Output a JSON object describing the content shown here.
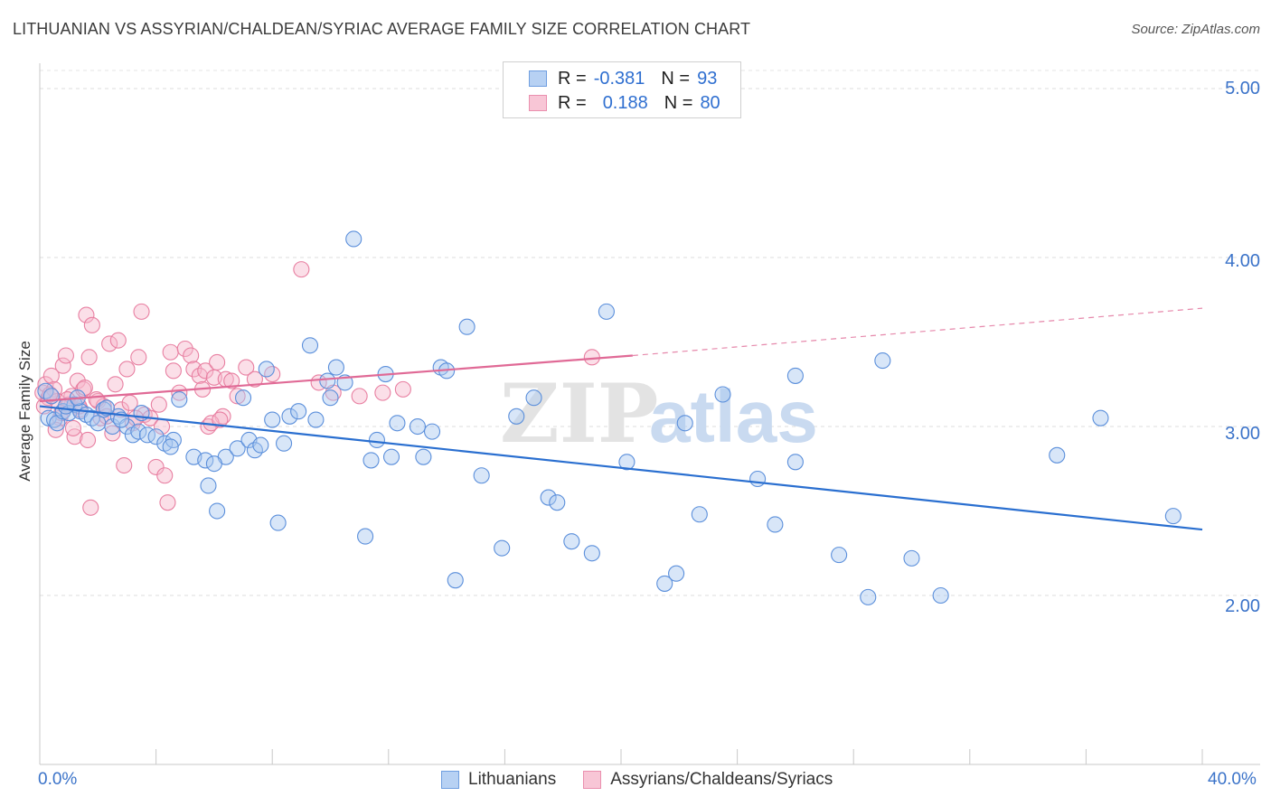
{
  "title": "LITHUANIAN VS ASSYRIAN/CHALDEAN/SYRIAC AVERAGE FAMILY SIZE CORRELATION CHART",
  "source": "Source: ZipAtlas.com",
  "watermark": {
    "part1": "ZIP",
    "part2": "atlas"
  },
  "legend": {
    "series1": {
      "r_label": "R =",
      "r_value": "-0.381",
      "n_label": "N =",
      "n_value": "93"
    },
    "series2": {
      "r_label": "R =",
      "r_value": "0.188",
      "n_label": "N =",
      "n_value": "80"
    }
  },
  "x_axis": {
    "min_label": "0.0%",
    "max_label": "40.0%"
  },
  "y_axis": {
    "label": "Average Family Size",
    "ticks": [
      "2.00",
      "3.00",
      "4.00",
      "5.00"
    ]
  },
  "colors": {
    "blue_fill": "#a9c8f0",
    "blue_stroke": "#5b8fdb",
    "blue_line": "#2a6fd0",
    "pink_fill": "#f6b8cc",
    "pink_stroke": "#e87fa1",
    "pink_line": "#e06a96",
    "tick_label": "#3b73c9"
  },
  "chart_data": {
    "type": "scatter",
    "xlabel": "",
    "ylabel": "Average Family Size",
    "xlim": [
      0,
      40
    ],
    "ylim": [
      1.0,
      5.15
    ],
    "y_ticks": [
      2.0,
      3.0,
      4.0,
      5.0
    ],
    "grid": true,
    "series": [
      {
        "name": "Lithuanians",
        "color": "#5b8fdb",
        "trend": {
          "x": [
            0,
            40
          ],
          "y": [
            3.12,
            2.39
          ],
          "style": "solid"
        },
        "points": [
          [
            0.3,
            3.05
          ],
          [
            0.5,
            3.04
          ],
          [
            0.6,
            3.02
          ],
          [
            0.8,
            3.09
          ],
          [
            1.0,
            3.08
          ],
          [
            1.2,
            3.13
          ],
          [
            1.4,
            3.09
          ],
          [
            1.6,
            3.07
          ],
          [
            1.8,
            3.05
          ],
          [
            2.0,
            3.02
          ],
          [
            2.2,
            3.1
          ],
          [
            2.5,
            3.0
          ],
          [
            2.7,
            3.06
          ],
          [
            3.0,
            3.0
          ],
          [
            3.2,
            2.95
          ],
          [
            3.4,
            2.97
          ],
          [
            3.7,
            2.95
          ],
          [
            4.0,
            2.94
          ],
          [
            4.3,
            2.9
          ],
          [
            4.6,
            2.92
          ],
          [
            4.8,
            3.16
          ],
          [
            5.3,
            2.82
          ],
          [
            5.7,
            2.8
          ],
          [
            5.8,
            2.65
          ],
          [
            6.1,
            2.5
          ],
          [
            6.4,
            2.82
          ],
          [
            6.8,
            2.87
          ],
          [
            7.0,
            3.17
          ],
          [
            7.2,
            2.92
          ],
          [
            7.4,
            2.86
          ],
          [
            7.6,
            2.89
          ],
          [
            7.8,
            3.34
          ],
          [
            8.0,
            3.04
          ],
          [
            8.2,
            2.43
          ],
          [
            8.4,
            2.9
          ],
          [
            8.6,
            3.06
          ],
          [
            8.9,
            3.09
          ],
          [
            9.3,
            3.48
          ],
          [
            9.5,
            3.04
          ],
          [
            9.9,
            3.27
          ],
          [
            10.2,
            3.35
          ],
          [
            10.5,
            3.26
          ],
          [
            10.8,
            4.11
          ],
          [
            11.2,
            2.35
          ],
          [
            11.4,
            2.8
          ],
          [
            11.6,
            2.92
          ],
          [
            11.9,
            3.31
          ],
          [
            12.1,
            2.82
          ],
          [
            12.3,
            3.02
          ],
          [
            13.0,
            3.0
          ],
          [
            13.2,
            2.82
          ],
          [
            13.5,
            2.97
          ],
          [
            13.8,
            3.35
          ],
          [
            14.0,
            3.33
          ],
          [
            14.3,
            2.09
          ],
          [
            14.7,
            3.59
          ],
          [
            15.2,
            2.71
          ],
          [
            15.9,
            2.28
          ],
          [
            16.4,
            3.06
          ],
          [
            17.0,
            3.17
          ],
          [
            17.5,
            2.58
          ],
          [
            17.8,
            2.55
          ],
          [
            18.3,
            2.32
          ],
          [
            19.0,
            2.25
          ],
          [
            19.5,
            3.68
          ],
          [
            20.2,
            2.79
          ],
          [
            21.5,
            2.07
          ],
          [
            21.9,
            2.13
          ],
          [
            22.2,
            3.02
          ],
          [
            22.7,
            2.48
          ],
          [
            23.5,
            3.19
          ],
          [
            24.7,
            2.69
          ],
          [
            25.3,
            2.42
          ],
          [
            26.0,
            3.3
          ],
          [
            26.0,
            2.79
          ],
          [
            27.5,
            2.24
          ],
          [
            28.5,
            1.99
          ],
          [
            29.0,
            3.39
          ],
          [
            30.0,
            2.22
          ],
          [
            31.0,
            2.0
          ],
          [
            35.0,
            2.83
          ],
          [
            36.5,
            3.05
          ],
          [
            39.0,
            2.47
          ],
          [
            0.2,
            3.21
          ],
          [
            0.4,
            3.18
          ],
          [
            0.9,
            3.12
          ],
          [
            1.3,
            3.17
          ],
          [
            2.3,
            3.11
          ],
          [
            2.8,
            3.04
          ],
          [
            3.5,
            3.08
          ],
          [
            4.5,
            2.88
          ],
          [
            6.0,
            2.78
          ],
          [
            10.0,
            3.17
          ]
        ]
      },
      {
        "name": "Assyrians/Chaldeans/Syriacs",
        "color": "#e87fa1",
        "trend": {
          "x": [
            0,
            20.4,
            40
          ],
          "y": [
            3.15,
            3.42,
            3.7
          ],
          "style": "solid-then-dashed"
        },
        "points": [
          [
            0.1,
            3.2
          ],
          [
            0.2,
            3.25
          ],
          [
            0.3,
            3.17
          ],
          [
            0.4,
            3.3
          ],
          [
            0.5,
            3.22
          ],
          [
            0.6,
            3.15
          ],
          [
            0.7,
            3.05
          ],
          [
            0.8,
            3.36
          ],
          [
            0.9,
            3.42
          ],
          [
            1.0,
            3.13
          ],
          [
            1.1,
            3.18
          ],
          [
            1.2,
            2.94
          ],
          [
            1.3,
            3.27
          ],
          [
            1.4,
            3.1
          ],
          [
            1.5,
            3.22
          ],
          [
            1.6,
            3.66
          ],
          [
            1.7,
            3.41
          ],
          [
            1.8,
            3.6
          ],
          [
            2.0,
            3.15
          ],
          [
            2.1,
            3.05
          ],
          [
            2.2,
            3.12
          ],
          [
            2.4,
            3.49
          ],
          [
            2.6,
            3.25
          ],
          [
            2.7,
            3.51
          ],
          [
            2.8,
            3.1
          ],
          [
            3.0,
            3.34
          ],
          [
            3.2,
            3.02
          ],
          [
            3.4,
            3.41
          ],
          [
            3.5,
            3.68
          ],
          [
            3.6,
            3.07
          ],
          [
            3.8,
            3.05
          ],
          [
            4.0,
            2.76
          ],
          [
            4.1,
            3.13
          ],
          [
            4.3,
            2.71
          ],
          [
            4.5,
            3.44
          ],
          [
            4.6,
            3.33
          ],
          [
            4.8,
            3.2
          ],
          [
            5.0,
            3.46
          ],
          [
            5.2,
            3.42
          ],
          [
            5.3,
            3.34
          ],
          [
            5.5,
            3.3
          ],
          [
            5.6,
            3.22
          ],
          [
            5.7,
            3.33
          ],
          [
            5.8,
            3.0
          ],
          [
            6.0,
            3.29
          ],
          [
            6.1,
            3.38
          ],
          [
            6.3,
            3.06
          ],
          [
            6.4,
            3.28
          ],
          [
            6.6,
            3.27
          ],
          [
            6.8,
            3.18
          ],
          [
            7.1,
            3.35
          ],
          [
            7.4,
            3.28
          ],
          [
            8.0,
            3.31
          ],
          [
            9.0,
            3.93
          ],
          [
            9.6,
            3.26
          ],
          [
            10.1,
            3.2
          ],
          [
            11.0,
            3.18
          ],
          [
            11.8,
            3.2
          ],
          [
            12.5,
            3.22
          ],
          [
            19.0,
            3.41
          ],
          [
            0.15,
            3.12
          ],
          [
            0.35,
            3.19
          ],
          [
            0.55,
            2.98
          ],
          [
            0.75,
            3.08
          ],
          [
            0.95,
            3.16
          ],
          [
            1.15,
            2.99
          ],
          [
            1.35,
            3.12
          ],
          [
            1.55,
            3.23
          ],
          [
            1.75,
            2.52
          ],
          [
            1.95,
            3.16
          ],
          [
            2.3,
            3.06
          ],
          [
            2.5,
            2.96
          ],
          [
            2.9,
            2.77
          ],
          [
            3.1,
            3.14
          ],
          [
            3.3,
            3.05
          ],
          [
            4.2,
            3.0
          ],
          [
            4.4,
            2.55
          ],
          [
            5.9,
            3.02
          ],
          [
            6.2,
            3.04
          ],
          [
            1.65,
            2.92
          ]
        ]
      }
    ]
  }
}
